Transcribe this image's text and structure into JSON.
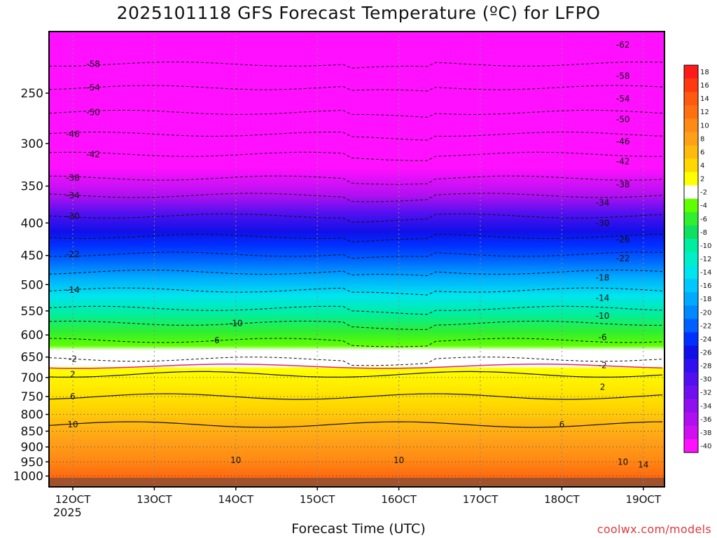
{
  "chart_data": {
    "type": "heatmap",
    "title": "2025101118 GFS Forecast Temperature (ºC) for LFPO",
    "xlabel": "Forecast Time (UTC)",
    "x_ticks": [
      "12OCT",
      "13OCT",
      "14OCT",
      "15OCT",
      "16OCT",
      "17OCT",
      "18OCT",
      "19OCT"
    ],
    "x_sublabel": "2025",
    "y_ticks": [
      250,
      300,
      350,
      400,
      450,
      500,
      550,
      600,
      650,
      700,
      750,
      800,
      850,
      900,
      950,
      1000
    ],
    "y_scale": "log-pressure",
    "colorbar_ticks": [
      18,
      16,
      14,
      12,
      10,
      8,
      6,
      4,
      2,
      -2,
      -4,
      -6,
      -8,
      -10,
      -12,
      -14,
      -16,
      -18,
      -20,
      -22,
      -24,
      -26,
      -28,
      -30,
      -32,
      -34,
      -36,
      -38,
      -40
    ],
    "colorbar_colors": [
      "#ff1a1a",
      "#ff3a10",
      "#ff5a10",
      "#ff7010",
      "#ff8a14",
      "#ffa018",
      "#ffba10",
      "#ffd800",
      "#ffff00",
      "#ffffff",
      "#60ff00",
      "#30ee30",
      "#10e060",
      "#00eea0",
      "#00eec8",
      "#00e4ee",
      "#00c8ff",
      "#00aaff",
      "#0088ff",
      "#0060ff",
      "#0030ff",
      "#1010e8",
      "#3010f0",
      "#5010f0",
      "#7010f0",
      "#9010f0",
      "#b010f0",
      "#d010f0",
      "#ff10ff"
    ],
    "contour_labels": [
      {
        "value": "-58",
        "x": "12OCT 06Z",
        "p": 225
      },
      {
        "value": "-54",
        "x": "12OCT 06Z",
        "p": 245
      },
      {
        "value": "-50",
        "x": "12OCT 06Z",
        "p": 268
      },
      {
        "value": "-46",
        "x": "12OCT 00Z",
        "p": 290
      },
      {
        "value": "-42",
        "x": "12OCT 06Z",
        "p": 312
      },
      {
        "value": "-38",
        "x": "12OCT 00Z",
        "p": 340
      },
      {
        "value": "-34",
        "x": "12OCT 00Z",
        "p": 362
      },
      {
        "value": "-30",
        "x": "12OCT 00Z",
        "p": 390
      },
      {
        "value": "-22",
        "x": "12OCT 00Z",
        "p": 448
      },
      {
        "value": "-14",
        "x": "12OCT 00Z",
        "p": 510
      },
      {
        "value": "-10",
        "x": "14OCT 00Z",
        "p": 575
      },
      {
        "value": "-6",
        "x": "13OCT 18Z",
        "p": 612
      },
      {
        "value": "-2",
        "x": "12OCT 00Z",
        "p": 655
      },
      {
        "value": "2",
        "x": "12OCT 00Z",
        "p": 692
      },
      {
        "value": "6",
        "x": "12OCT 00Z",
        "p": 750
      },
      {
        "value": "10",
        "x": "12OCT 00Z",
        "p": 830
      },
      {
        "value": "10",
        "x": "14OCT 00Z",
        "p": 945
      },
      {
        "value": "10",
        "x": "16OCT 00Z",
        "p": 945
      },
      {
        "value": "10",
        "x": "18OCT 18Z",
        "p": 950
      },
      {
        "value": "14",
        "x": "19OCT 00Z",
        "p": 960
      },
      {
        "value": "-62",
        "x": "18OCT 18Z",
        "p": 210
      },
      {
        "value": "-58",
        "x": "18OCT 18Z",
        "p": 235
      },
      {
        "value": "-54",
        "x": "18OCT 18Z",
        "p": 255
      },
      {
        "value": "-50",
        "x": "18OCT 18Z",
        "p": 275
      },
      {
        "value": "-46",
        "x": "18OCT 18Z",
        "p": 298
      },
      {
        "value": "-42",
        "x": "18OCT 18Z",
        "p": 320
      },
      {
        "value": "-38",
        "x": "18OCT 18Z",
        "p": 348
      },
      {
        "value": "-34",
        "x": "18OCT 12Z",
        "p": 372
      },
      {
        "value": "-30",
        "x": "18OCT 12Z",
        "p": 400
      },
      {
        "value": "-26",
        "x": "18OCT 18Z",
        "p": 425
      },
      {
        "value": "-22",
        "x": "18OCT 18Z",
        "p": 455
      },
      {
        "value": "-18",
        "x": "18OCT 12Z",
        "p": 488
      },
      {
        "value": "-14",
        "x": "18OCT 12Z",
        "p": 525
      },
      {
        "value": "-10",
        "x": "18OCT 12Z",
        "p": 560
      },
      {
        "value": "-6",
        "x": "18OCT 12Z",
        "p": 605
      },
      {
        "value": "-2",
        "x": "18OCT 12Z",
        "p": 670
      },
      {
        "value": "2",
        "x": "18OCT 12Z",
        "p": 725
      },
      {
        "value": "6",
        "x": "18OCT 00Z",
        "p": 830
      }
    ]
  },
  "credit": "coolwx.com/models",
  "colors": {
    "frame": "#000000",
    "ground": "#a0522d"
  }
}
